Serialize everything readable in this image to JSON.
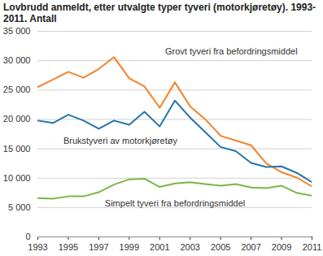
{
  "chart_data": {
    "type": "line",
    "title": "Lovbrudd anmeldt, etter utvalgte typer tyveri (motorkjøretøy). 1993-2011. Antall",
    "x": [
      1993,
      1994,
      1995,
      1996,
      1997,
      1998,
      1999,
      2000,
      2001,
      2002,
      2003,
      2004,
      2005,
      2006,
      2007,
      2008,
      2009,
      2010,
      2011
    ],
    "series": [
      {
        "name": "Grovt tyveri fra befordringsmiddel",
        "color": "#f5822a",
        "values": [
          25500,
          26800,
          28100,
          27100,
          28600,
          30600,
          27000,
          25600,
          22000,
          26300,
          22200,
          20000,
          17200,
          16400,
          15600,
          12500,
          11000,
          10100,
          8600
        ]
      },
      {
        "name": "Brukstyveri av motorkjøretøy",
        "color": "#2574a9",
        "values": [
          19800,
          19400,
          20800,
          19800,
          18400,
          19800,
          19100,
          21300,
          18800,
          23200,
          20300,
          17800,
          15300,
          14600,
          12600,
          11900,
          12000,
          10900,
          9300
        ]
      },
      {
        "name": "Simpelt tyveri fra befordringsmiddel",
        "color": "#7ab648",
        "values": [
          6600,
          6500,
          6900,
          6900,
          7600,
          8900,
          9800,
          9900,
          8500,
          9100,
          9300,
          9000,
          8700,
          9000,
          8400,
          8300,
          8700,
          7500,
          7000
        ]
      }
    ],
    "xlim": [
      1993,
      2011
    ],
    "xticks": [
      1993,
      1995,
      1997,
      1999,
      2001,
      2003,
      2005,
      2007,
      2009,
      2011
    ],
    "ylim": [
      0,
      35000
    ],
    "yticks": [
      0,
      {
        "value": 5000,
        "label": "5 000"
      },
      {
        "value": 10000,
        "label": "10 000"
      },
      {
        "value": 15000,
        "label": "15 000"
      },
      {
        "value": 20000,
        "label": "20 000"
      },
      {
        "value": 25000,
        "label": "25 000"
      },
      {
        "value": 30000,
        "label": "30 000"
      },
      {
        "value": 35000,
        "label": "35 000"
      }
    ],
    "grid": true
  }
}
